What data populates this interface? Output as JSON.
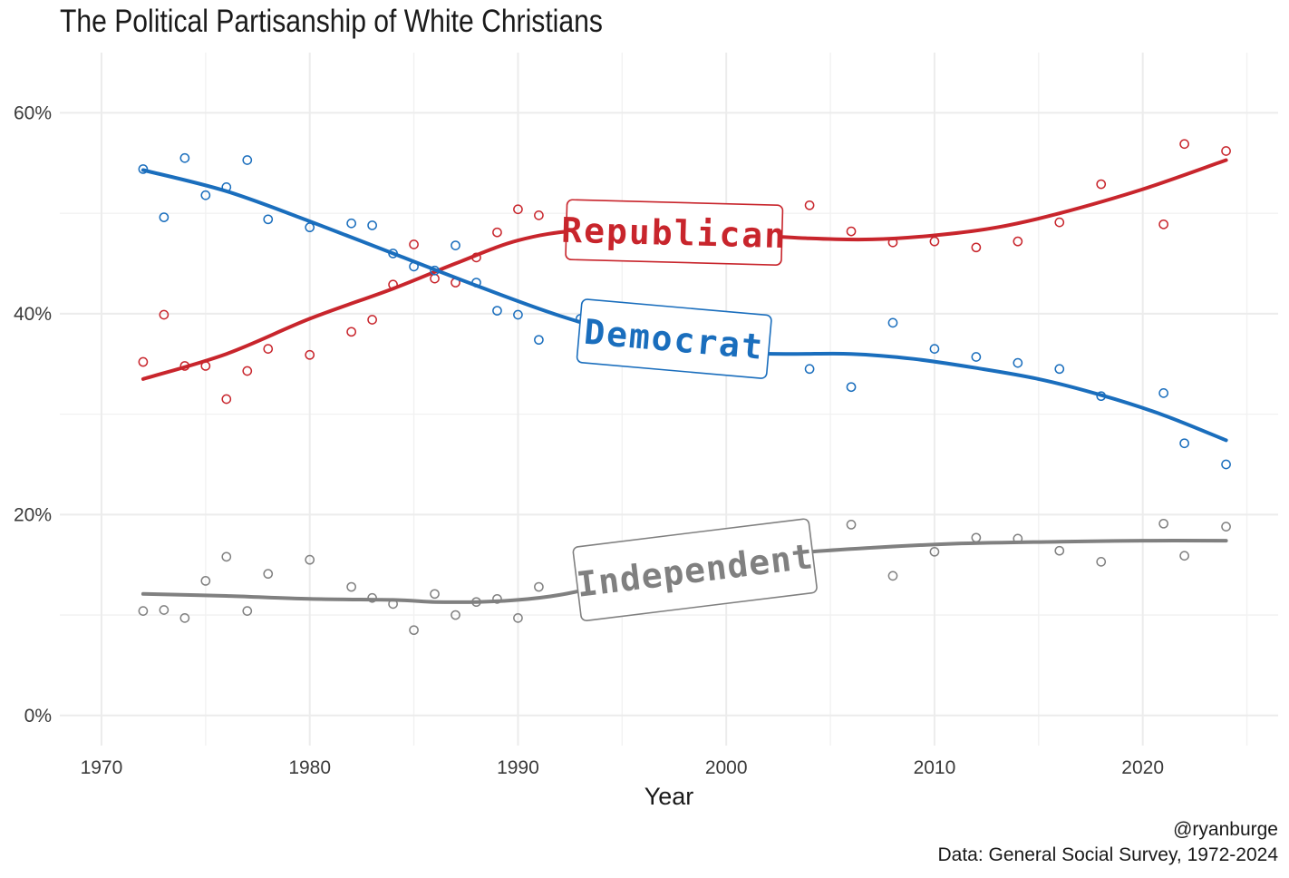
{
  "title": "The Political Partisanship of White Christians",
  "credit": "@ryanburge",
  "source": "Data: General Social Survey, 1972-2024",
  "chart_data": {
    "type": "scatter",
    "title": "The Political Partisanship of White Christians",
    "xlabel": "Year",
    "ylabel": "",
    "xlim": [
      1968,
      2026.5
    ],
    "ylim": [
      -3,
      66
    ],
    "x_ticks": [
      1970,
      1980,
      1990,
      2000,
      2010,
      2020
    ],
    "x_tick_labels": [
      "1970",
      "1980",
      "1990",
      "2000",
      "2010",
      "2020"
    ],
    "y_ticks": [
      0,
      20,
      40,
      60
    ],
    "y_tick_labels": [
      "0%",
      "20%",
      "40%",
      "60%"
    ],
    "grid": true,
    "legend": "direct labels on lines",
    "series": [
      {
        "name": "Republican",
        "color": "#c8252c",
        "points": [
          [
            1972,
            35.2
          ],
          [
            1973,
            39.9
          ],
          [
            1974,
            34.8
          ],
          [
            1975,
            34.8
          ],
          [
            1976,
            31.5
          ],
          [
            1977,
            34.3
          ],
          [
            1978,
            36.5
          ],
          [
            1980,
            35.9
          ],
          [
            1982,
            38.2
          ],
          [
            1983,
            39.4
          ],
          [
            1984,
            42.9
          ],
          [
            1985,
            46.9
          ],
          [
            1986,
            43.5
          ],
          [
            1987,
            43.1
          ],
          [
            1988,
            45.6
          ],
          [
            1989,
            48.1
          ],
          [
            1990,
            50.4
          ],
          [
            1991,
            49.8
          ],
          [
            1998,
            45.7
          ],
          [
            2000,
            45.7
          ],
          [
            2004,
            50.8
          ],
          [
            2006,
            48.2
          ],
          [
            2008,
            47.1
          ],
          [
            2010,
            47.2
          ],
          [
            2012,
            46.6
          ],
          [
            2014,
            47.2
          ],
          [
            2016,
            49.1
          ],
          [
            2018,
            52.9
          ],
          [
            2021,
            48.9
          ],
          [
            2022,
            56.9
          ],
          [
            2024,
            56.2
          ]
        ],
        "trend": [
          [
            1972,
            33.5
          ],
          [
            1976,
            36
          ],
          [
            1980,
            39.5
          ],
          [
            1984,
            42.5
          ],
          [
            1987,
            45
          ],
          [
            1990,
            47.3
          ],
          [
            1993,
            48.3
          ],
          [
            1997,
            48.3
          ],
          [
            2000,
            48
          ],
          [
            2004,
            47.5
          ],
          [
            2007,
            47.4
          ],
          [
            2010,
            47.8
          ],
          [
            2013,
            48.6
          ],
          [
            2016,
            50
          ],
          [
            2020,
            52.4
          ],
          [
            2024,
            55.3
          ]
        ]
      },
      {
        "name": "Democrat",
        "color": "#1a6ebd",
        "points": [
          [
            1972,
            54.4
          ],
          [
            1973,
            49.6
          ],
          [
            1974,
            55.5
          ],
          [
            1975,
            51.8
          ],
          [
            1976,
            52.6
          ],
          [
            1977,
            55.3
          ],
          [
            1978,
            49.4
          ],
          [
            1980,
            48.6
          ],
          [
            1982,
            49
          ],
          [
            1983,
            48.8
          ],
          [
            1984,
            46
          ],
          [
            1985,
            44.7
          ],
          [
            1986,
            44.3
          ],
          [
            1987,
            46.8
          ],
          [
            1988,
            43.1
          ],
          [
            1989,
            40.3
          ],
          [
            1990,
            39.9
          ],
          [
            1991,
            37.4
          ],
          [
            1993,
            39.5
          ],
          [
            2004,
            34.5
          ],
          [
            2006,
            32.7
          ],
          [
            2008,
            39.1
          ],
          [
            2010,
            36.5
          ],
          [
            2012,
            35.7
          ],
          [
            2014,
            35.1
          ],
          [
            2016,
            34.5
          ],
          [
            2018,
            31.8
          ],
          [
            2021,
            32.1
          ],
          [
            2022,
            27.1
          ],
          [
            2024,
            25
          ]
        ],
        "trend": [
          [
            1972,
            54.3
          ],
          [
            1976,
            52.2
          ],
          [
            1980,
            49.2
          ],
          [
            1984,
            46
          ],
          [
            1988,
            42.8
          ],
          [
            1992,
            39.8
          ],
          [
            1996,
            37.5
          ],
          [
            2000,
            36.2
          ],
          [
            2003,
            36
          ],
          [
            2006,
            36
          ],
          [
            2009,
            35.5
          ],
          [
            2012,
            34.6
          ],
          [
            2015,
            33.5
          ],
          [
            2018,
            31.9
          ],
          [
            2021,
            29.9
          ],
          [
            2024,
            27.4
          ]
        ]
      },
      {
        "name": "Independent",
        "color": "#808080",
        "points": [
          [
            1972,
            10.4
          ],
          [
            1973,
            10.5
          ],
          [
            1974,
            9.7
          ],
          [
            1975,
            13.4
          ],
          [
            1976,
            15.8
          ],
          [
            1977,
            10.4
          ],
          [
            1978,
            14.1
          ],
          [
            1980,
            15.5
          ],
          [
            1982,
            12.8
          ],
          [
            1983,
            11.7
          ],
          [
            1984,
            11.1
          ],
          [
            1985,
            8.5
          ],
          [
            1986,
            12.1
          ],
          [
            1987,
            10
          ],
          [
            1988,
            11.3
          ],
          [
            1989,
            11.6
          ],
          [
            1990,
            9.7
          ],
          [
            1991,
            12.8
          ],
          [
            2004,
            14.8
          ],
          [
            2006,
            19
          ],
          [
            2008,
            13.9
          ],
          [
            2010,
            16.3
          ],
          [
            2012,
            17.7
          ],
          [
            2014,
            17.6
          ],
          [
            2016,
            16.4
          ],
          [
            2018,
            15.3
          ],
          [
            2021,
            19.1
          ],
          [
            2022,
            15.9
          ],
          [
            2024,
            18.8
          ]
        ],
        "trend": [
          [
            1972,
            12.1
          ],
          [
            1976,
            11.9
          ],
          [
            1980,
            11.6
          ],
          [
            1984,
            11.5
          ],
          [
            1986,
            11.3
          ],
          [
            1988,
            11.3
          ],
          [
            1990,
            11.5
          ],
          [
            1992,
            12
          ],
          [
            1995,
            13.3
          ],
          [
            1999,
            15
          ],
          [
            2003,
            16.1
          ],
          [
            2007,
            16.7
          ],
          [
            2011,
            17.1
          ],
          [
            2016,
            17.3
          ],
          [
            2020,
            17.4
          ],
          [
            2024,
            17.4
          ]
        ]
      }
    ],
    "labels": [
      {
        "text": "Republican",
        "series": "Republican",
        "x": 1997.5,
        "y": 48.1
      },
      {
        "text": "Democrat",
        "series": "Democrat",
        "x": 1997.5,
        "y": 37.5
      },
      {
        "text": "Independent",
        "series": "Independent",
        "x": 1998.5,
        "y": 14.5
      }
    ]
  }
}
